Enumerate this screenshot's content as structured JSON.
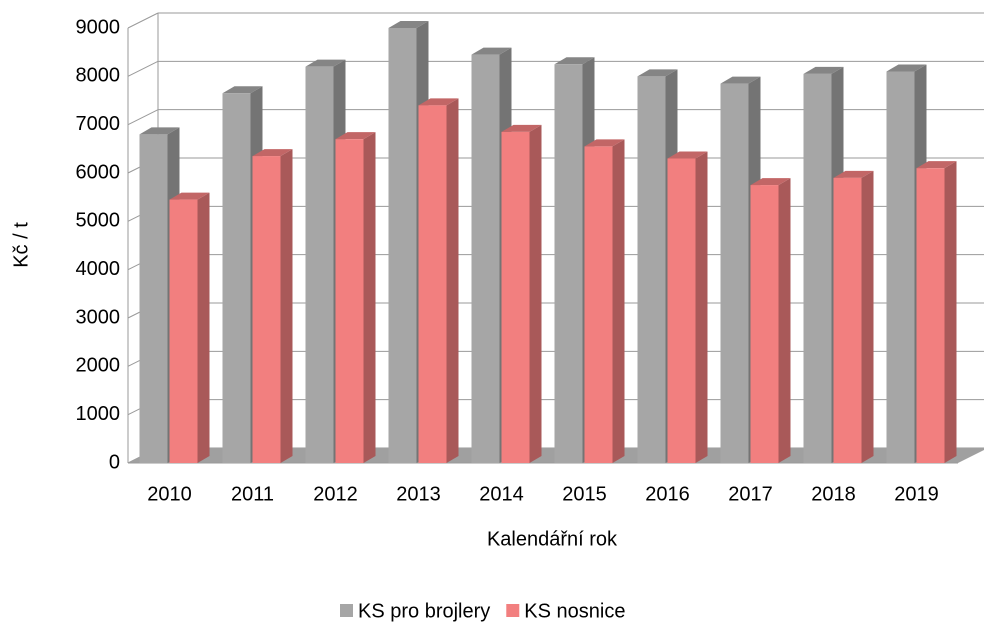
{
  "chart_data": {
    "type": "bar3d",
    "categories": [
      "2010",
      "2011",
      "2012",
      "2013",
      "2014",
      "2015",
      "2016",
      "2017",
      "2018",
      "2019"
    ],
    "series": [
      {
        "name": "KS pro brojlery",
        "color": "#a6a6a6",
        "values": [
          6800,
          7650,
          8200,
          9000,
          8450,
          8250,
          8000,
          7850,
          8050,
          8100
        ]
      },
      {
        "name": "KS nosnice",
        "color": "#f27f7f",
        "values": [
          5450,
          6350,
          6700,
          7400,
          6850,
          6550,
          6300,
          5750,
          5900,
          6100
        ]
      }
    ],
    "xlabel": "Kalendářní rok",
    "ylabel": "Kč / t",
    "ylim": [
      0,
      9000
    ],
    "yticks": [
      0,
      1000,
      2000,
      3000,
      4000,
      5000,
      6000,
      7000,
      8000,
      9000
    ],
    "grid": true,
    "legend": "bottom"
  }
}
